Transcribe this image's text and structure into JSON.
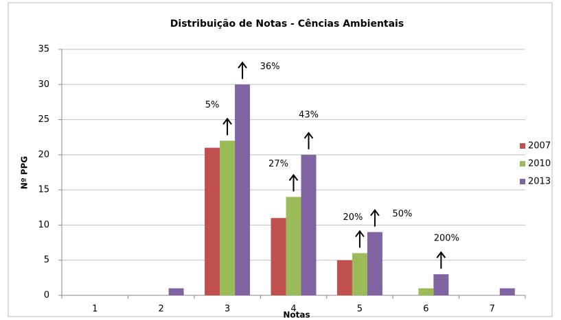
{
  "chart_data": {
    "type": "bar",
    "title": "Distribuição de Notas - Cências Ambientais",
    "x_label": "Notas",
    "y_label": "Nº PPG",
    "categories": [
      "1",
      "2",
      "3",
      "4",
      "5",
      "6",
      "7"
    ],
    "series": [
      {
        "name": "2007",
        "color": "#c0504d",
        "values": [
          0,
          0,
          21,
          11,
          5,
          0,
          0
        ]
      },
      {
        "name": "2010",
        "color": "#9bbb59",
        "values": [
          0,
          0,
          22,
          14,
          6,
          1,
          0
        ]
      },
      {
        "name": "2013",
        "color": "#8064a2",
        "values": [
          0,
          1,
          30,
          20,
          9,
          3,
          1
        ]
      }
    ],
    "ylim": [
      0,
      35
    ],
    "yticks": [
      0,
      5,
      10,
      15,
      20,
      25,
      30,
      35
    ],
    "grid": true,
    "legend": "right",
    "annotations": [
      "5%",
      "36%",
      "27%",
      "43%",
      "20%",
      "50%",
      "200%"
    ]
  }
}
